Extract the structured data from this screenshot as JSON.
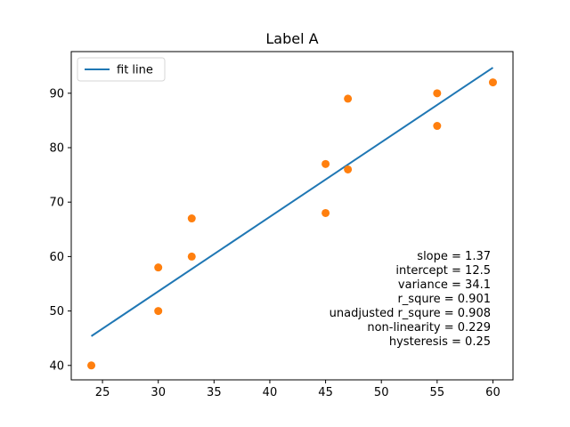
{
  "chart_data": {
    "type": "scatter",
    "title": "Label A",
    "xlabel": "",
    "ylabel": "",
    "xlim": [
      22.2,
      61.8
    ],
    "ylim": [
      37.35,
      97.65
    ],
    "xticks": [
      25,
      30,
      35,
      40,
      45,
      50,
      55,
      60
    ],
    "yticks": [
      40,
      50,
      60,
      70,
      80,
      90
    ],
    "grid": false,
    "legend_position": "top-left",
    "points": {
      "x": [
        24,
        30,
        30,
        33,
        33,
        45,
        45,
        47,
        47,
        55,
        55,
        60
      ],
      "y": [
        40,
        58,
        50,
        67,
        60,
        77,
        68,
        89,
        76,
        90,
        84,
        92
      ],
      "color": "#ff7f0e"
    },
    "fit_line": {
      "name": "fit line",
      "slope": 1.37,
      "intercept": 12.5,
      "x_range": [
        24,
        60
      ],
      "color": "#1f77b4"
    },
    "annotations": [
      "slope = 1.37",
      "intercept = 12.5",
      "variance = 34.1",
      "r_squre = 0.901",
      "unadjusted r_squre = 0.908",
      "non-linearity = 0.229",
      "hysteresis = 0.25"
    ]
  }
}
